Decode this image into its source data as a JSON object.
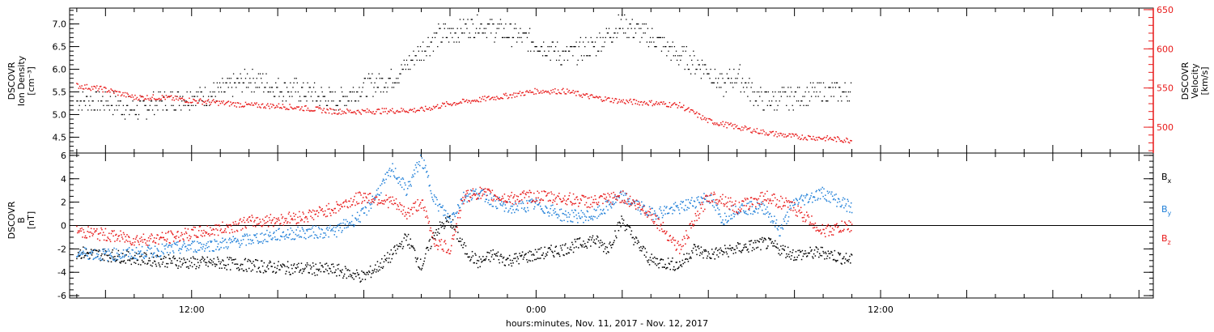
{
  "colors": {
    "black": "#000000",
    "red": "#e81919",
    "blue": "#1f7fd8"
  },
  "xaxis": {
    "title": "hours:minutes, Nov. 11, 2017 - Nov. 12, 2017",
    "range_hours": [
      7.75,
      45.5
    ],
    "tick_labels": [
      {
        "hours": 12,
        "label": "12:00"
      },
      {
        "hours": 24,
        "label": "0:00"
      },
      {
        "hours": 36,
        "label": "12:00"
      }
    ]
  },
  "chart_data": [
    {
      "type": "scatter",
      "panel": "plasma",
      "ylabel": "DSCOVR Ion Density [cm⁻³]",
      "ylabel_lines": [
        "DSCOVR",
        "Ion Density",
        "[cm⁻³]"
      ],
      "ylim": [
        4.15,
        7.35
      ],
      "yticks": [
        4.5,
        5.0,
        5.5,
        6.0,
        6.5,
        7.0
      ],
      "ytick_labels": [
        "4.5",
        "5.0",
        "5.5",
        "6.0",
        "6.5",
        "7.0"
      ],
      "y2label": "DSCOVR Velocity [km/s]",
      "y2label_lines": [
        "DSCOVR",
        "Velocity",
        "[km/s]"
      ],
      "y2lim": [
        467,
        652
      ],
      "y2ticks": [
        500,
        550,
        600,
        650
      ],
      "y2tick_labels": [
        "500",
        "550",
        "600",
        "650"
      ],
      "series": [
        {
          "color": "black",
          "axis": "left",
          "x": [
            8.0,
            9.0,
            10.0,
            11.0,
            12.0,
            13.0,
            14.0,
            15.0,
            16.0,
            17.0,
            18.0,
            19.0,
            20.0,
            20.5,
            21.0,
            22.0,
            23.0,
            24.0,
            25.0,
            26.0,
            27.0,
            28.0,
            29.0,
            30.0,
            30.5,
            31.0,
            31.5,
            32.0,
            33.0,
            34.0,
            35.0
          ],
          "y": [
            5.3,
            5.3,
            5.1,
            5.3,
            5.4,
            5.5,
            5.8,
            5.6,
            5.5,
            5.3,
            5.6,
            5.8,
            6.4,
            6.7,
            6.8,
            7.0,
            6.8,
            6.6,
            6.3,
            6.5,
            7.0,
            6.7,
            6.3,
            6.0,
            5.6,
            5.9,
            5.5,
            5.3,
            5.4,
            5.5,
            5.5
          ]
        },
        {
          "color": "red",
          "axis": "right",
          "x": [
            8.0,
            9.0,
            10.0,
            11.0,
            12.0,
            13.0,
            14.0,
            15.0,
            16.0,
            17.0,
            18.0,
            19.0,
            20.0,
            21.0,
            22.0,
            23.0,
            24.0,
            25.0,
            26.0,
            27.0,
            28.0,
            29.0,
            30.0,
            31.0,
            32.0,
            33.0,
            34.0,
            35.0
          ],
          "y": [
            553,
            548,
            538,
            538,
            534,
            531,
            528,
            527,
            524,
            520,
            520,
            521,
            522,
            530,
            535,
            540,
            546,
            546,
            538,
            533,
            531,
            528,
            508,
            500,
            493,
            488,
            486,
            483
          ]
        }
      ]
    },
    {
      "type": "scatter",
      "panel": "magnetic field",
      "ylabel": "DSCOVR B [nT]",
      "ylabel_lines": [
        "DSCOVR",
        "B",
        "[nT]"
      ],
      "ylim": [
        -6.2,
        6.2
      ],
      "yticks": [
        -6,
        -4,
        -2,
        0,
        2,
        4,
        6
      ],
      "ytick_labels": [
        "-6",
        "-4",
        "-2",
        "0",
        "2",
        "4",
        "6"
      ],
      "zero_line": true,
      "series": [
        {
          "name": "Bx",
          "base": "B",
          "sub": "x",
          "color": "black",
          "x": [
            8,
            9,
            10,
            11,
            12,
            13,
            14,
            15,
            16,
            17,
            17.5,
            18,
            18.5,
            19,
            19.5,
            20,
            20.5,
            21,
            21.5,
            22,
            22.5,
            23,
            24,
            25,
            26,
            26.5,
            27,
            27.5,
            28,
            29,
            29.5,
            30,
            31,
            32,
            33,
            34,
            35
          ],
          "y": [
            -2.3,
            -2.5,
            -2.8,
            -3.0,
            -3.2,
            -3.2,
            -3.4,
            -3.6,
            -3.7,
            -3.8,
            -4.1,
            -4.4,
            -3.5,
            -2.5,
            -1.0,
            -3.5,
            -0.5,
            0.5,
            -2.0,
            -3.2,
            -2.5,
            -3.0,
            -2.5,
            -2.0,
            -1.2,
            -2.0,
            0.5,
            -1.5,
            -3.0,
            -3.4,
            -2.0,
            -2.5,
            -2.0,
            -1.5,
            -2.5,
            -2.3,
            -3.0
          ]
        },
        {
          "name": "By",
          "base": "B",
          "sub": "y",
          "color": "blue",
          "x": [
            8,
            9,
            10,
            11,
            12,
            13,
            14,
            15,
            16,
            17,
            18,
            19,
            19.5,
            20,
            20.5,
            21,
            21.5,
            22,
            23,
            24,
            25,
            26,
            27,
            28,
            29,
            30,
            30.5,
            31,
            32,
            32.5,
            33,
            34,
            35
          ],
          "y": [
            -2.3,
            -2.5,
            -2.4,
            -2.1,
            -1.8,
            -1.6,
            -1.2,
            -0.8,
            -0.6,
            -0.5,
            1.0,
            4.8,
            3.0,
            5.8,
            2.0,
            0.5,
            2.5,
            2.8,
            1.5,
            1.8,
            0.8,
            0.8,
            2.5,
            1.0,
            1.5,
            2.5,
            0.5,
            1.5,
            1.5,
            -0.5,
            2.0,
            2.8,
            1.5
          ]
        },
        {
          "name": "Bz",
          "base": "B",
          "sub": "z",
          "color": "red",
          "x": [
            8,
            9,
            10,
            11,
            12,
            13,
            14,
            15,
            16,
            17,
            18,
            19,
            19.5,
            20,
            20.5,
            21,
            21.5,
            22,
            23,
            24,
            25,
            26,
            27,
            28,
            29,
            30,
            30.5,
            31,
            32,
            33,
            34,
            35
          ],
          "y": [
            -0.5,
            -0.8,
            -1.2,
            -1.1,
            -0.7,
            -0.3,
            0.3,
            0.5,
            0.8,
            1.5,
            2.5,
            2.0,
            1.0,
            2.0,
            -1.5,
            -2.0,
            2.5,
            2.8,
            2.3,
            2.5,
            2.3,
            2.0,
            2.5,
            1.0,
            -2.0,
            2.5,
            2.3,
            1.5,
            2.5,
            1.5,
            -0.5,
            0.0
          ]
        }
      ]
    }
  ]
}
